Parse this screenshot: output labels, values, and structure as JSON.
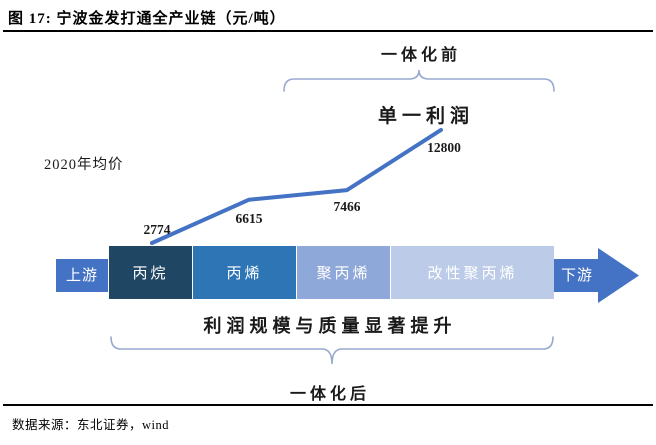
{
  "figure": {
    "title": "图 17:  宁波金发打通全产业链（元/吨）",
    "source": "数据来源：东北证券，wind"
  },
  "annotations": {
    "pre_integration": "一体化前",
    "post_integration": "一体化后",
    "single_profit": "单一利润",
    "avg_price_2020": "2020年均价",
    "profit_improvement": "利润规模与质量显著提升"
  },
  "chain": {
    "upstream_label": "上游",
    "downstream_label": "下游",
    "arrow_color": "#4472C4",
    "segments": [
      {
        "label": "丙烷",
        "color": "#1F4764",
        "text_color": "#FFFFFF"
      },
      {
        "label": "丙烯",
        "color": "#2E75B6",
        "text_color": "#FFFFFF"
      },
      {
        "label": "聚丙烯",
        "color": "#8FA8DA",
        "text_color": "#FFFFFF"
      },
      {
        "label": "改性聚丙烯",
        "color": "#BCCCE8",
        "text_color": "#FFFFFF"
      }
    ]
  },
  "style": {
    "brace_color": "#97A9D0"
  },
  "chart_data": {
    "type": "line",
    "title": "单一利润",
    "subtitle": "2020年均价",
    "unit": "元/吨",
    "categories": [
      "丙烷",
      "丙烯",
      "聚丙烯",
      "改性聚丙烯"
    ],
    "values": [
      2774,
      6615,
      7466,
      12800
    ],
    "data_labels": [
      "2774",
      "6615",
      "7466",
      "12800"
    ],
    "line_color": "#4472C4",
    "legend": "none",
    "grid": false,
    "axes_visible": false
  }
}
